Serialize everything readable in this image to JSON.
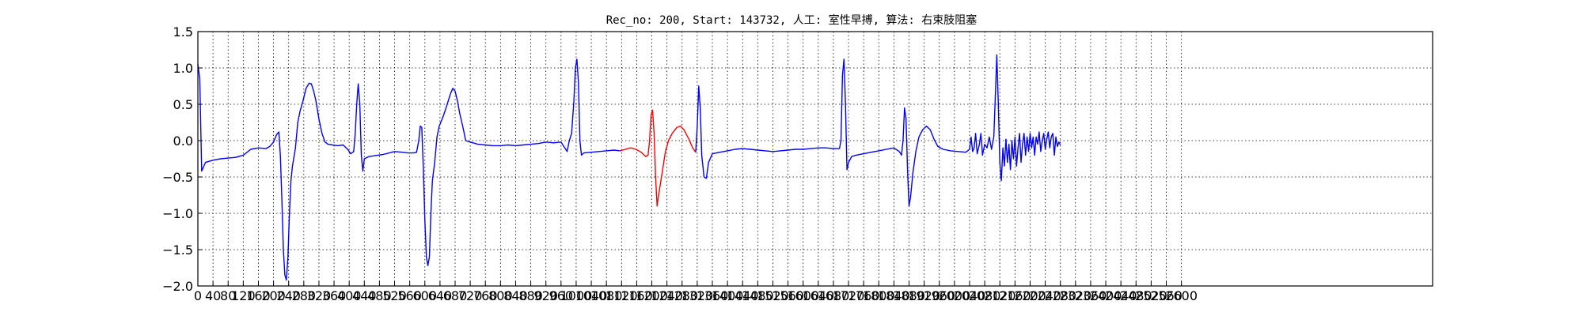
{
  "chart_data": {
    "type": "line",
    "title": "Rec_no: 200, Start: 143732, 人工: 室性早搏, 算法: 右束肢阻塞",
    "xlabel": "",
    "ylabel": "",
    "xlim": [
      0,
      3264
    ],
    "ylim": [
      -2.0,
      1.5
    ],
    "grid": true,
    "y_ticks": [
      1.5,
      1.0,
      0.5,
      0.0,
      -0.5,
      -1.0,
      -1.5,
      -2.0
    ],
    "y_tick_labels": [
      "1.5",
      "1.0",
      "0.5",
      "0.0",
      "−0.5",
      "−1.0",
      "−1.5",
      "−2.0"
    ],
    "x_ticks": [
      0,
      40,
      80,
      120,
      160,
      200,
      240,
      280,
      320,
      360,
      400,
      440,
      480,
      520,
      560,
      600,
      640,
      680,
      720,
      760,
      800,
      840,
      880,
      920,
      960,
      1000,
      1040,
      1080,
      1120,
      1160,
      1200,
      1240,
      1280,
      1320,
      1360,
      1400,
      1440,
      1480,
      1520,
      1560,
      1600,
      1640,
      1680,
      1720,
      1760,
      1800,
      1840,
      1880,
      1920,
      1960,
      2000,
      2040,
      2080,
      2120,
      2160,
      2200,
      2240,
      2280,
      2320,
      2360,
      2400,
      2440,
      2480,
      2520,
      2560,
      2600
    ],
    "series": [
      {
        "color": "#0000ff",
        "points": [
          [
            0,
            1.05
          ],
          [
            5,
            0.85
          ],
          [
            10,
            -0.42
          ],
          [
            20,
            -0.3
          ],
          [
            40,
            -0.27
          ],
          [
            60,
            -0.25
          ],
          [
            80,
            -0.24
          ],
          [
            100,
            -0.23
          ],
          [
            120,
            -0.2
          ],
          [
            140,
            -0.12
          ],
          [
            160,
            -0.1
          ],
          [
            180,
            -0.11
          ],
          [
            190,
            -0.08
          ],
          [
            200,
            -0.02
          ],
          [
            208,
            0.08
          ],
          [
            214,
            0.12
          ],
          [
            218,
            -0.2
          ],
          [
            222,
            -0.8
          ],
          [
            226,
            -1.5
          ],
          [
            230,
            -1.85
          ],
          [
            234,
            -1.92
          ],
          [
            238,
            -1.6
          ],
          [
            242,
            -1.0
          ],
          [
            246,
            -0.55
          ],
          [
            250,
            -0.35
          ],
          [
            258,
            -0.1
          ],
          [
            264,
            0.25
          ],
          [
            270,
            0.4
          ],
          [
            278,
            0.55
          ],
          [
            286,
            0.72
          ],
          [
            294,
            0.79
          ],
          [
            300,
            0.78
          ],
          [
            306,
            0.68
          ],
          [
            312,
            0.55
          ],
          [
            320,
            0.3
          ],
          [
            328,
            0.1
          ],
          [
            336,
            -0.02
          ],
          [
            344,
            -0.05
          ],
          [
            356,
            -0.06
          ],
          [
            370,
            -0.07
          ],
          [
            384,
            -0.06
          ],
          [
            396,
            -0.12
          ],
          [
            404,
            -0.18
          ],
          [
            412,
            -0.15
          ],
          [
            416,
            0.1
          ],
          [
            420,
            0.5
          ],
          [
            424,
            0.78
          ],
          [
            428,
            0.5
          ],
          [
            432,
            -0.2
          ],
          [
            436,
            -0.42
          ],
          [
            440,
            -0.25
          ],
          [
            452,
            -0.22
          ],
          [
            464,
            -0.21
          ],
          [
            476,
            -0.2
          ],
          [
            490,
            -0.19
          ],
          [
            506,
            -0.17
          ],
          [
            520,
            -0.15
          ],
          [
            540,
            -0.16
          ],
          [
            556,
            -0.17
          ],
          [
            570,
            -0.17
          ],
          [
            578,
            -0.16
          ],
          [
            584,
            0.0
          ],
          [
            588,
            0.2
          ],
          [
            592,
            0.18
          ],
          [
            596,
            -0.4
          ],
          [
            600,
            -1.1
          ],
          [
            604,
            -1.6
          ],
          [
            608,
            -1.72
          ],
          [
            612,
            -1.6
          ],
          [
            616,
            -1.0
          ],
          [
            620,
            -0.55
          ],
          [
            626,
            -0.3
          ],
          [
            632,
            0.05
          ],
          [
            638,
            0.2
          ],
          [
            646,
            0.3
          ],
          [
            654,
            0.42
          ],
          [
            662,
            0.55
          ],
          [
            668,
            0.65
          ],
          [
            674,
            0.72
          ],
          [
            680,
            0.68
          ],
          [
            686,
            0.55
          ],
          [
            692,
            0.38
          ],
          [
            700,
            0.2
          ],
          [
            708,
            0.0
          ],
          [
            720,
            -0.02
          ],
          [
            740,
            -0.05
          ],
          [
            760,
            -0.06
          ],
          [
            780,
            -0.07
          ],
          [
            800,
            -0.07
          ],
          [
            820,
            -0.06
          ],
          [
            840,
            -0.07
          ],
          [
            860,
            -0.06
          ],
          [
            880,
            -0.05
          ],
          [
            900,
            -0.04
          ],
          [
            920,
            -0.02
          ],
          [
            940,
            -0.03
          ],
          [
            960,
            -0.02
          ],
          [
            970,
            -0.1
          ],
          [
            976,
            -0.15
          ],
          [
            982,
            0.0
          ],
          [
            988,
            0.1
          ],
          [
            994,
            0.55
          ],
          [
            998,
            1.0
          ],
          [
            1002,
            1.12
          ],
          [
            1006,
            0.8
          ],
          [
            1010,
            0.0
          ],
          [
            1014,
            -0.2
          ],
          [
            1020,
            -0.17
          ],
          [
            1040,
            -0.16
          ],
          [
            1060,
            -0.15
          ],
          [
            1080,
            -0.14
          ],
          [
            1100,
            -0.13
          ],
          [
            1116,
            -0.14
          ]
        ]
      },
      {
        "color": "#ff0000",
        "points": [
          [
            1116,
            -0.14
          ],
          [
            1130,
            -0.12
          ],
          [
            1144,
            -0.1
          ],
          [
            1158,
            -0.12
          ],
          [
            1172,
            -0.16
          ],
          [
            1184,
            -0.22
          ],
          [
            1190,
            -0.2
          ],
          [
            1194,
            0.0
          ],
          [
            1198,
            0.35
          ],
          [
            1202,
            0.42
          ],
          [
            1206,
            0.1
          ],
          [
            1210,
            -0.5
          ],
          [
            1214,
            -0.9
          ],
          [
            1218,
            -0.75
          ],
          [
            1224,
            -0.55
          ],
          [
            1230,
            -0.35
          ],
          [
            1236,
            -0.15
          ],
          [
            1244,
            0.0
          ],
          [
            1254,
            0.1
          ],
          [
            1266,
            0.18
          ],
          [
            1276,
            0.2
          ],
          [
            1286,
            0.14
          ],
          [
            1298,
            0.02
          ],
          [
            1308,
            -0.1
          ],
          [
            1316,
            -0.16
          ]
        ]
      },
      {
        "color": "#0000ff",
        "points": [
          [
            1316,
            -0.16
          ],
          [
            1320,
            0.2
          ],
          [
            1324,
            0.75
          ],
          [
            1328,
            0.45
          ],
          [
            1332,
            -0.2
          ],
          [
            1338,
            -0.5
          ],
          [
            1344,
            -0.52
          ],
          [
            1350,
            -0.3
          ],
          [
            1360,
            -0.18
          ],
          [
            1380,
            -0.16
          ],
          [
            1400,
            -0.14
          ],
          [
            1420,
            -0.12
          ],
          [
            1440,
            -0.11
          ],
          [
            1460,
            -0.12
          ],
          [
            1480,
            -0.13
          ],
          [
            1500,
            -0.14
          ],
          [
            1520,
            -0.15
          ],
          [
            1540,
            -0.14
          ],
          [
            1560,
            -0.13
          ],
          [
            1580,
            -0.12
          ],
          [
            1600,
            -0.12
          ],
          [
            1620,
            -0.11
          ],
          [
            1640,
            -0.1
          ],
          [
            1660,
            -0.1
          ],
          [
            1680,
            -0.11
          ],
          [
            1696,
            -0.11
          ],
          [
            1700,
            0.0
          ],
          [
            1704,
            0.9
          ],
          [
            1708,
            1.12
          ],
          [
            1712,
            0.5
          ],
          [
            1716,
            -0.4
          ],
          [
            1720,
            -0.3
          ],
          [
            1728,
            -0.22
          ],
          [
            1740,
            -0.2
          ],
          [
            1760,
            -0.18
          ],
          [
            1780,
            -0.16
          ],
          [
            1800,
            -0.14
          ],
          [
            1820,
            -0.12
          ],
          [
            1840,
            -0.1
          ],
          [
            1854,
            -0.15
          ],
          [
            1860,
            -0.2
          ],
          [
            1864,
            0.0
          ],
          [
            1868,
            0.45
          ],
          [
            1872,
            0.3
          ],
          [
            1876,
            -0.4
          ],
          [
            1880,
            -0.9
          ],
          [
            1884,
            -0.78
          ],
          [
            1890,
            -0.45
          ],
          [
            1898,
            -0.15
          ],
          [
            1906,
            0.05
          ],
          [
            1916,
            0.15
          ],
          [
            1926,
            0.2
          ],
          [
            1936,
            0.15
          ],
          [
            1946,
            0.02
          ],
          [
            1956,
            -0.08
          ],
          [
            1970,
            -0.12
          ],
          [
            1990,
            -0.14
          ],
          [
            2010,
            -0.15
          ],
          [
            2030,
            -0.16
          ],
          [
            2040,
            -0.12
          ],
          [
            2044,
            0.05
          ],
          [
            2048,
            -0.15
          ],
          [
            2052,
            -0.1
          ],
          [
            2056,
            0.1
          ],
          [
            2060,
            -0.18
          ],
          [
            2066,
            -0.05
          ],
          [
            2070,
            0.1
          ],
          [
            2074,
            -0.2
          ],
          [
            2080,
            -0.05
          ],
          [
            2086,
            -0.1
          ],
          [
            2092,
            0.05
          ],
          [
            2098,
            -0.12
          ],
          [
            2104,
            0.05
          ],
          [
            2108,
            0.6
          ],
          [
            2112,
            1.18
          ],
          [
            2116,
            0.5
          ],
          [
            2120,
            -0.3
          ],
          [
            2124,
            -0.55
          ],
          [
            2128,
            -0.1
          ],
          [
            2132,
            -0.35
          ],
          [
            2136,
            0.02
          ],
          [
            2140,
            -0.3
          ],
          [
            2144,
            -0.05
          ],
          [
            2148,
            -0.4
          ],
          [
            2152,
            0.0
          ],
          [
            2156,
            -0.25
          ],
          [
            2160,
            0.05
          ],
          [
            2164,
            -0.35
          ],
          [
            2168,
            -0.1
          ],
          [
            2172,
            0.1
          ],
          [
            2176,
            -0.3
          ],
          [
            2180,
            -0.05
          ],
          [
            2184,
            0.1
          ],
          [
            2188,
            -0.2
          ],
          [
            2192,
            0.05
          ],
          [
            2196,
            -0.15
          ],
          [
            2200,
            0.1
          ],
          [
            2204,
            -0.1
          ],
          [
            2208,
            0.05
          ],
          [
            2212,
            -0.2
          ],
          [
            2216,
            0.05
          ],
          [
            2220,
            -0.05
          ],
          [
            2224,
            0.12
          ],
          [
            2228,
            -0.15
          ],
          [
            2232,
            0.0
          ],
          [
            2236,
            0.1
          ],
          [
            2240,
            -0.12
          ],
          [
            2244,
            0.02
          ],
          [
            2248,
            0.12
          ],
          [
            2252,
            -0.1
          ],
          [
            2256,
            0.05
          ],
          [
            2260,
            0.1
          ],
          [
            2264,
            -0.2
          ],
          [
            2268,
            0.05
          ],
          [
            2272,
            -0.08
          ],
          [
            2276,
            -0.02
          ],
          [
            2280,
            -0.06
          ]
        ]
      }
    ]
  }
}
